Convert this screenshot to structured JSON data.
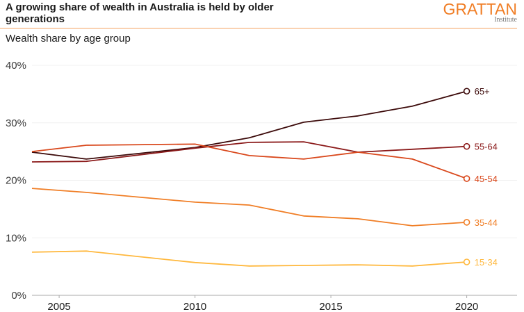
{
  "header": {
    "title": "A growing share of wealth in Australia is held by older generations",
    "subtitle": "Wealth share by age group",
    "logo_main": "GRATTAN",
    "logo_sub": "Institute"
  },
  "chart_data": {
    "type": "line",
    "title": "A growing share of wealth in Australia is held by older generations",
    "subtitle": "Wealth share by age group",
    "xlabel": "",
    "ylabel": "",
    "x": [
      2004,
      2006,
      2010,
      2012,
      2014,
      2016,
      2018,
      2020
    ],
    "xlim": [
      2004,
      2021.9
    ],
    "ylim": [
      0,
      40
    ],
    "yticks": [
      0,
      10,
      20,
      30,
      40
    ],
    "ytick_labels": [
      "0%",
      "10%",
      "20%",
      "30%",
      "40%"
    ],
    "xticks": [
      2005,
      2010,
      2015,
      2020
    ],
    "xtick_labels": [
      "2005",
      "2010",
      "2015",
      "2020"
    ],
    "grid": true,
    "legend": "direct labels at line ends (right)",
    "series": [
      {
        "name": "65+",
        "color": "#3c0a0a",
        "values": [
          24.9,
          23.7,
          25.7,
          27.4,
          30.1,
          31.2,
          32.9,
          35.5
        ]
      },
      {
        "name": "55-64",
        "color": "#8b1a1a",
        "values": [
          23.2,
          23.3,
          25.6,
          26.6,
          26.7,
          24.9,
          25.4,
          25.9
        ]
      },
      {
        "name": "45-54",
        "color": "#d9481c",
        "values": [
          25.0,
          26.1,
          26.3,
          24.3,
          23.7,
          24.9,
          23.7,
          20.3
        ]
      },
      {
        "name": "35-44",
        "color": "#f07e26",
        "values": [
          18.6,
          17.9,
          16.2,
          15.7,
          13.8,
          13.3,
          12.1,
          12.7
        ]
      },
      {
        "name": "15-34",
        "color": "#ffb83d",
        "values": [
          7.5,
          7.7,
          5.7,
          5.1,
          5.2,
          5.3,
          5.1,
          5.8
        ]
      }
    ]
  }
}
